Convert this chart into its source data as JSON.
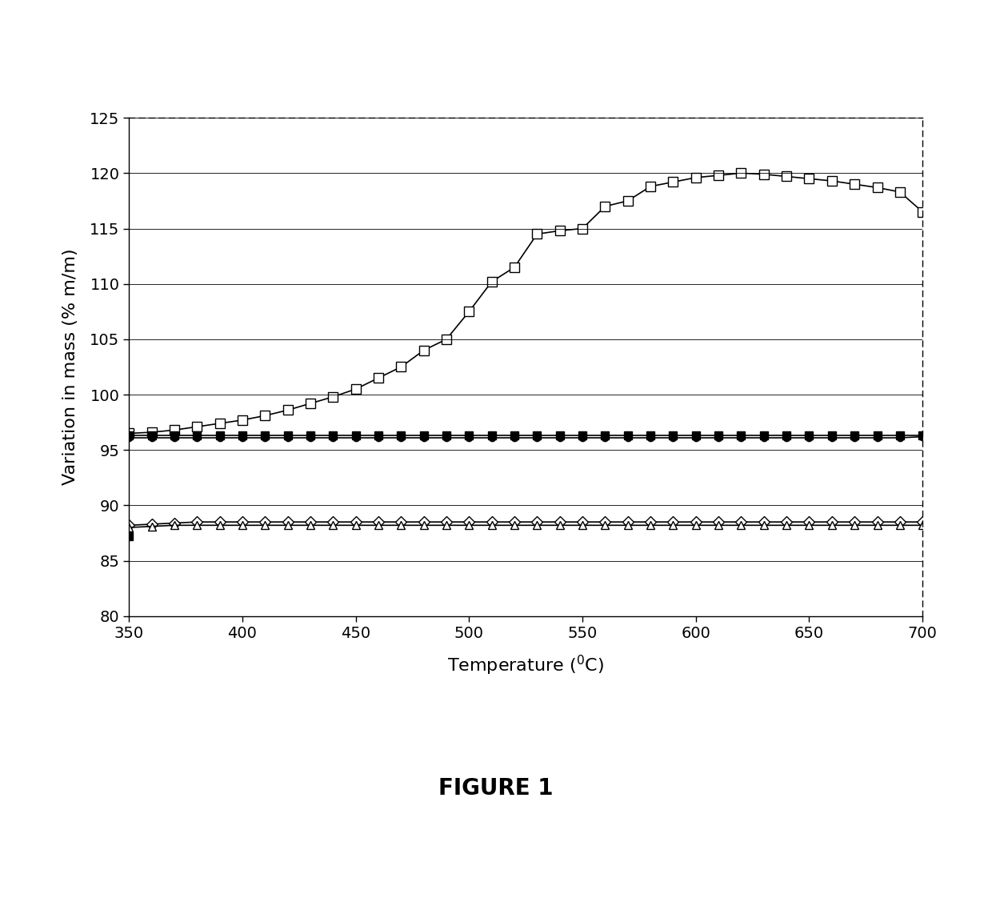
{
  "xlabel": "Temperature (⁰C)",
  "ylabel": "Variation in mass (% m/m)",
  "figure_title": "FIGURE 1",
  "xlim": [
    350,
    700
  ],
  "ylim": [
    80,
    125
  ],
  "yticks": [
    80,
    85,
    90,
    95,
    100,
    105,
    110,
    115,
    120,
    125
  ],
  "xticks": [
    350,
    400,
    450,
    500,
    550,
    600,
    650,
    700
  ],
  "series": [
    {
      "name": "open_square_rising",
      "x": [
        350,
        360,
        370,
        380,
        390,
        400,
        410,
        420,
        430,
        440,
        450,
        460,
        470,
        480,
        490,
        500,
        510,
        520,
        530,
        540,
        550,
        560,
        570,
        580,
        590,
        600,
        610,
        620,
        630,
        640,
        650,
        660,
        670,
        680,
        690,
        700
      ],
      "y": [
        96.5,
        96.6,
        96.8,
        97.1,
        97.4,
        97.7,
        98.1,
        98.6,
        99.2,
        99.8,
        100.5,
        101.5,
        102.5,
        104.0,
        105.0,
        107.5,
        110.2,
        111.5,
        114.5,
        114.8,
        115.0,
        117.0,
        117.5,
        118.8,
        119.2,
        119.6,
        119.8,
        120.0,
        119.9,
        119.7,
        119.5,
        119.3,
        119.0,
        118.7,
        118.3,
        116.5
      ],
      "marker": "s",
      "markerfacecolor": "white",
      "markeredgecolor": "black",
      "linecolor": "black",
      "linestyle": "-",
      "markersize": 8
    },
    {
      "name": "filled_square_flat",
      "x": [
        350,
        360,
        370,
        380,
        390,
        400,
        410,
        420,
        430,
        440,
        450,
        460,
        470,
        480,
        490,
        500,
        510,
        520,
        530,
        540,
        550,
        560,
        570,
        580,
        590,
        600,
        610,
        620,
        630,
        640,
        650,
        660,
        670,
        680,
        690,
        700
      ],
      "y": [
        96.3,
        96.3,
        96.3,
        96.3,
        96.3,
        96.3,
        96.3,
        96.3,
        96.3,
        96.3,
        96.3,
        96.3,
        96.3,
        96.3,
        96.3,
        96.3,
        96.3,
        96.3,
        96.3,
        96.3,
        96.3,
        96.3,
        96.3,
        96.3,
        96.3,
        96.3,
        96.3,
        96.3,
        96.3,
        96.3,
        96.3,
        96.3,
        96.3,
        96.3,
        96.3,
        96.3
      ],
      "marker": "s",
      "markerfacecolor": "black",
      "markeredgecolor": "black",
      "linecolor": "black",
      "linestyle": "-",
      "markersize": 7
    },
    {
      "name": "filled_circle_flat",
      "x": [
        350,
        360,
        370,
        380,
        390,
        400,
        410,
        420,
        430,
        440,
        450,
        460,
        470,
        480,
        490,
        500,
        510,
        520,
        530,
        540,
        550,
        560,
        570,
        580,
        590,
        600,
        610,
        620,
        630,
        640,
        650,
        660,
        670,
        680,
        690,
        700
      ],
      "y": [
        96.1,
        96.1,
        96.1,
        96.1,
        96.1,
        96.1,
        96.1,
        96.1,
        96.1,
        96.1,
        96.1,
        96.1,
        96.1,
        96.1,
        96.1,
        96.1,
        96.1,
        96.1,
        96.1,
        96.1,
        96.1,
        96.1,
        96.1,
        96.1,
        96.1,
        96.1,
        96.1,
        96.1,
        96.1,
        96.1,
        96.1,
        96.1,
        96.1,
        96.1,
        96.1,
        96.2
      ],
      "marker": "o",
      "markerfacecolor": "black",
      "markeredgecolor": "black",
      "linecolor": "black",
      "linestyle": "-",
      "markersize": 6
    },
    {
      "name": "open_diamond_flat_lower",
      "x": [
        350,
        360,
        370,
        380,
        390,
        400,
        410,
        420,
        430,
        440,
        450,
        460,
        470,
        480,
        490,
        500,
        510,
        520,
        530,
        540,
        550,
        560,
        570,
        580,
        590,
        600,
        610,
        620,
        630,
        640,
        650,
        660,
        670,
        680,
        690,
        700
      ],
      "y": [
        88.2,
        88.3,
        88.4,
        88.5,
        88.5,
        88.5,
        88.5,
        88.5,
        88.5,
        88.5,
        88.5,
        88.5,
        88.5,
        88.5,
        88.5,
        88.5,
        88.5,
        88.5,
        88.5,
        88.5,
        88.5,
        88.5,
        88.5,
        88.5,
        88.5,
        88.5,
        88.5,
        88.5,
        88.5,
        88.5,
        88.5,
        88.5,
        88.5,
        88.5,
        88.5,
        88.5
      ],
      "marker": "D",
      "markerfacecolor": "white",
      "markeredgecolor": "black",
      "linecolor": "black",
      "linestyle": "-",
      "markersize": 7
    },
    {
      "name": "open_triangle_flat_lower",
      "x": [
        350,
        360,
        370,
        380,
        390,
        400,
        410,
        420,
        430,
        440,
        450,
        460,
        470,
        480,
        490,
        500,
        510,
        520,
        530,
        540,
        550,
        560,
        570,
        580,
        590,
        600,
        610,
        620,
        630,
        640,
        650,
        660,
        670,
        680,
        690,
        700
      ],
      "y": [
        88.0,
        88.1,
        88.2,
        88.2,
        88.2,
        88.2,
        88.2,
        88.2,
        88.2,
        88.2,
        88.2,
        88.2,
        88.2,
        88.2,
        88.2,
        88.2,
        88.2,
        88.2,
        88.2,
        88.2,
        88.2,
        88.2,
        88.2,
        88.2,
        88.2,
        88.2,
        88.2,
        88.2,
        88.2,
        88.2,
        88.2,
        88.2,
        88.2,
        88.2,
        88.2,
        88.2
      ],
      "marker": "^",
      "markerfacecolor": "white",
      "markeredgecolor": "black",
      "linecolor": "black",
      "linestyle": "-",
      "markersize": 7
    },
    {
      "name": "filled_square_start_low",
      "x": [
        350
      ],
      "y": [
        87.2
      ],
      "marker": "s",
      "markerfacecolor": "black",
      "markeredgecolor": "black",
      "linecolor": "none",
      "linestyle": "none",
      "markersize": 7
    }
  ],
  "background_color": "#ffffff",
  "figsize": [
    12.4,
    11.32
  ],
  "dpi": 100
}
